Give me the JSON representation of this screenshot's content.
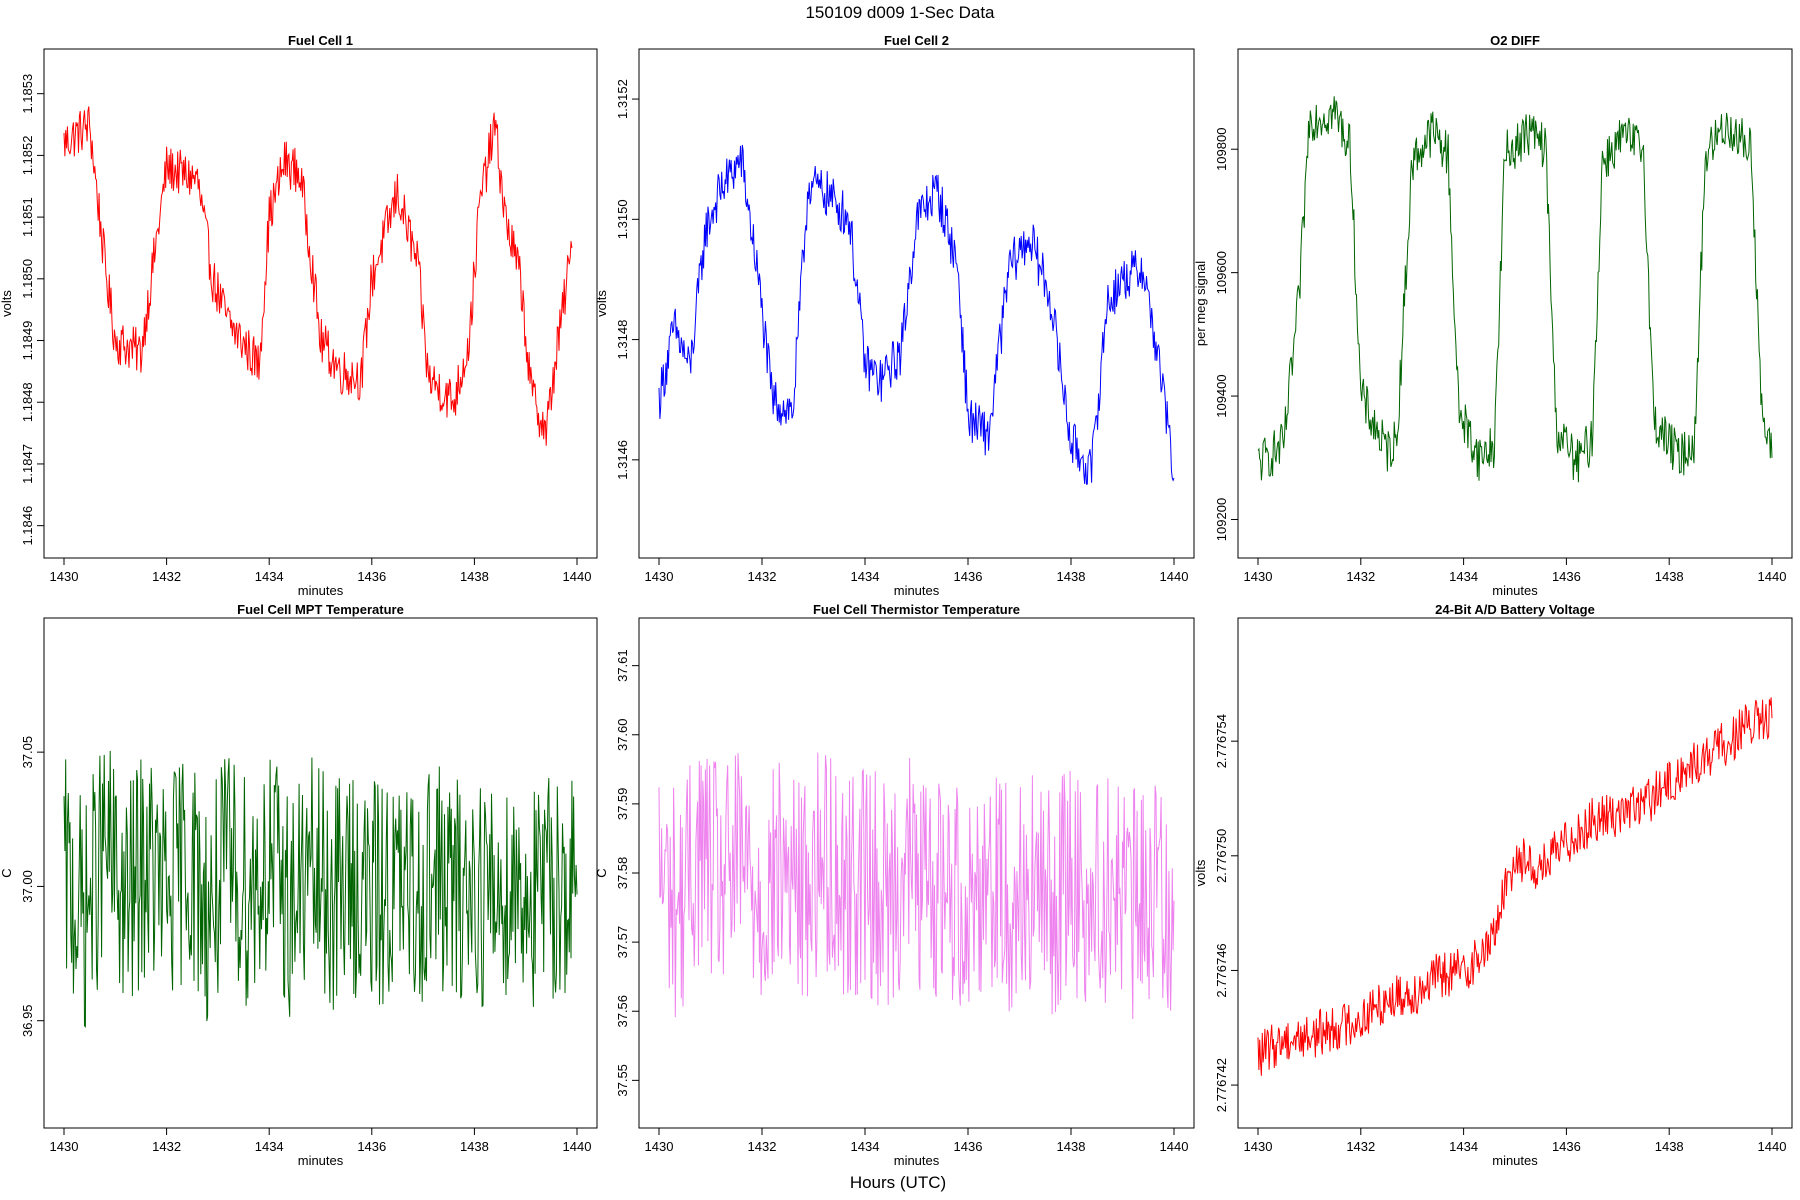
{
  "page": {
    "title": "150109   d009   1-Sec Data",
    "footer_label": "Hours (UTC)"
  },
  "chart_data": [
    {
      "type": "line",
      "title": "Fuel Cell 1",
      "xlabel": "minutes",
      "ylabel": "volts",
      "color": "#ff0000",
      "xlim": [
        1430,
        1440
      ],
      "ylim": [
        1.18458,
        1.18534
      ],
      "xticks": [
        1430,
        1432,
        1434,
        1436,
        1438,
        1440
      ],
      "yticks": [
        1.1846,
        1.1847,
        1.1848,
        1.1849,
        1.185,
        1.1851,
        1.1852,
        1.1853
      ],
      "ytick_labels": [
        "1.1846",
        "1.1847",
        "1.1848",
        "1.1849",
        "1.1850",
        "1.1851",
        "1.1852",
        "1.1853"
      ],
      "series": [
        {
          "x": [
            1430.0,
            1430.5,
            1430.8,
            1431.0,
            1431.5,
            1431.7,
            1432.0,
            1432.6,
            1432.9,
            1433.2,
            1433.8,
            1434.0,
            1434.3,
            1434.6,
            1434.8,
            1435.0,
            1435.4,
            1435.8,
            1436.0,
            1436.5,
            1436.9,
            1437.1,
            1437.6,
            1437.9,
            1438.1,
            1438.4,
            1438.6,
            1438.9,
            1439.1,
            1439.4,
            1439.6,
            1439.9
          ],
          "y": [
            1.18522,
            1.18525,
            1.18502,
            1.1849,
            1.18488,
            1.185,
            1.18518,
            1.18516,
            1.185,
            1.18493,
            1.18486,
            1.1851,
            1.18519,
            1.18517,
            1.18505,
            1.1849,
            1.18485,
            1.18484,
            1.185,
            1.18514,
            1.18502,
            1.18484,
            1.1848,
            1.1849,
            1.18512,
            1.18525,
            1.1851,
            1.185,
            1.18482,
            1.18475,
            1.18488,
            1.18505
          ]
        }
      ]
    },
    {
      "type": "line",
      "title": "Fuel Cell 2",
      "xlabel": "minutes",
      "ylabel": "volts",
      "color": "#0000ff",
      "xlim": [
        1430,
        1440
      ],
      "ylim": [
        1.31447,
        1.31525
      ],
      "xticks": [
        1430,
        1432,
        1434,
        1436,
        1438,
        1440
      ],
      "yticks": [
        1.3146,
        1.3148,
        1.315,
        1.3152
      ],
      "ytick_labels": [
        "1.3146",
        "1.3148",
        "1.3150",
        "1.3152"
      ],
      "series": [
        {
          "x": [
            1430.0,
            1430.3,
            1430.6,
            1430.9,
            1431.2,
            1431.6,
            1431.9,
            1432.2,
            1432.6,
            1432.9,
            1433.3,
            1433.7,
            1434.0,
            1434.3,
            1434.7,
            1435.0,
            1435.4,
            1435.8,
            1436.0,
            1436.4,
            1436.8,
            1437.2,
            1437.6,
            1438.0,
            1438.4,
            1438.7,
            1439.0,
            1439.4,
            1439.8,
            1440.0
          ],
          "y": [
            1.3147,
            1.31482,
            1.31475,
            1.31498,
            1.31505,
            1.3151,
            1.31492,
            1.3147,
            1.31468,
            1.31506,
            1.31504,
            1.315,
            1.31476,
            1.31473,
            1.31478,
            1.315,
            1.31505,
            1.31492,
            1.31467,
            1.31464,
            1.31492,
            1.31497,
            1.31487,
            1.31463,
            1.31458,
            1.31486,
            1.3149,
            1.31492,
            1.31471,
            1.31457
          ]
        }
      ]
    },
    {
      "type": "line",
      "title": "O2 DIFF",
      "xlabel": "minutes",
      "ylabel": "per meg signal",
      "color": "#006400",
      "xlim": [
        1430,
        1440
      ],
      "ylim": [
        109170,
        109930
      ],
      "xticks": [
        1430,
        1432,
        1434,
        1436,
        1438,
        1440
      ],
      "yticks": [
        109200,
        109400,
        109600,
        109800
      ],
      "ytick_labels": [
        "109200",
        "109400",
        "109600",
        "109800"
      ],
      "series": [
        {
          "x": [
            1430.0,
            1430.5,
            1430.8,
            1431.0,
            1431.5,
            1431.8,
            1432.0,
            1432.5,
            1432.7,
            1433.0,
            1433.4,
            1433.7,
            1433.9,
            1434.3,
            1434.6,
            1434.8,
            1435.3,
            1435.6,
            1435.8,
            1436.2,
            1436.5,
            1436.7,
            1437.1,
            1437.5,
            1437.7,
            1438.2,
            1438.5,
            1438.7,
            1439.1,
            1439.6,
            1439.8,
            1440.0
          ],
          "y": [
            109290,
            109320,
            109560,
            109850,
            109860,
            109800,
            109400,
            109310,
            109330,
            109780,
            109830,
            109790,
            109380,
            109300,
            109320,
            109790,
            109830,
            109800,
            109350,
            109290,
            109330,
            109780,
            109820,
            109800,
            109360,
            109300,
            109330,
            109790,
            109840,
            109800,
            109370,
            109300
          ]
        }
      ]
    },
    {
      "type": "line",
      "title": "Fuel Cell MPT Temperature",
      "xlabel": "minutes",
      "ylabel": "C",
      "color": "#006400",
      "xlim": [
        1430,
        1440
      ],
      "ylim": [
        36.9175,
        37.0925
      ],
      "xticks": [
        1430,
        1432,
        1434,
        1436,
        1438,
        1440
      ],
      "yticks": [
        36.95,
        37.0,
        37.05
      ],
      "ytick_labels": [
        "36.95",
        "37.00",
        "37.05"
      ],
      "series": [
        {
          "x": [
            1430.0,
            1430.4,
            1430.8,
            1431.2,
            1431.6,
            1432.0,
            1432.4,
            1432.8,
            1433.2,
            1433.6,
            1434.0,
            1434.4,
            1434.8,
            1435.2,
            1435.6,
            1436.0,
            1436.4,
            1436.8,
            1437.2,
            1437.6,
            1438.0,
            1438.4,
            1438.8,
            1439.2,
            1439.6,
            1440.0
          ],
          "y": [
            37.005,
            36.988,
            37.015,
            36.992,
            37.01,
            36.995,
            37.012,
            36.99,
            37.008,
            36.998,
            37.01,
            36.993,
            37.005,
            36.996,
            37.002,
            36.995,
            37.0,
            36.994,
            37.006,
            36.996,
            37.001,
            36.995,
            37.003,
            36.994,
            37.002,
            36.997
          ]
        }
      ]
    },
    {
      "type": "line",
      "title": "Fuel Cell Thermistor Temperature",
      "xlabel": "minutes",
      "ylabel": "C",
      "color": "#ee82ee",
      "xlim": [
        1430,
        1440
      ],
      "ylim": [
        37.546,
        37.614
      ],
      "xticks": [
        1430,
        1432,
        1434,
        1436,
        1438,
        1440
      ],
      "yticks": [
        37.55,
        37.56,
        37.57,
        37.58,
        37.59,
        37.6,
        37.61
      ],
      "ytick_labels": [
        "37.55",
        "37.56",
        "37.57",
        "37.58",
        "37.59",
        "37.60",
        "37.61"
      ],
      "series": [
        {
          "x": [
            1430.0,
            1430.4,
            1430.8,
            1431.2,
            1431.6,
            1432.0,
            1432.4,
            1432.8,
            1433.2,
            1433.6,
            1434.0,
            1434.4,
            1434.8,
            1435.2,
            1435.6,
            1436.0,
            1436.4,
            1436.8,
            1437.2,
            1437.6,
            1438.0,
            1438.4,
            1438.8,
            1439.2,
            1439.6,
            1440.0
          ],
          "y": [
            37.58,
            37.575,
            37.584,
            37.578,
            37.582,
            37.576,
            37.581,
            37.577,
            37.583,
            37.578,
            37.58,
            37.576,
            37.582,
            37.577,
            37.579,
            37.575,
            37.581,
            37.576,
            37.578,
            37.575,
            37.58,
            37.576,
            37.579,
            37.575,
            37.578,
            37.576
          ]
        }
      ]
    },
    {
      "type": "line",
      "title": "24-Bit A/D Battery Voltage",
      "xlabel": "minutes",
      "ylabel": "volts",
      "color": "#ff0000",
      "xlim": [
        1430,
        1440
      ],
      "ylim": [
        2.7767412,
        2.7767576
      ],
      "xticks": [
        1430,
        1432,
        1434,
        1436,
        1438,
        1440
      ],
      "yticks": [
        2.776742,
        2.776746,
        2.77675,
        2.776754
      ],
      "ytick_labels": [
        "2.776742",
        "2.776746",
        "2.776750",
        "2.776754"
      ],
      "series": [
        {
          "x": [
            1430.0,
            1430.5,
            1431.0,
            1431.5,
            1432.0,
            1432.5,
            1433.0,
            1433.5,
            1434.0,
            1434.5,
            1435.0,
            1435.5,
            1436.0,
            1436.5,
            1437.0,
            1437.5,
            1438.0,
            1438.5,
            1439.0,
            1439.5,
            1440.0
          ],
          "y": [
            2.776743,
            2.7767436,
            2.7767437,
            2.776744,
            2.7767443,
            2.776745,
            2.7767452,
            2.7767458,
            2.776746,
            2.7767468,
            2.77675,
            2.7767495,
            2.7767505,
            2.7767512,
            2.7767515,
            2.7767518,
            2.7767525,
            2.7767532,
            2.7767538,
            2.7767545,
            2.7767548
          ]
        }
      ]
    }
  ]
}
